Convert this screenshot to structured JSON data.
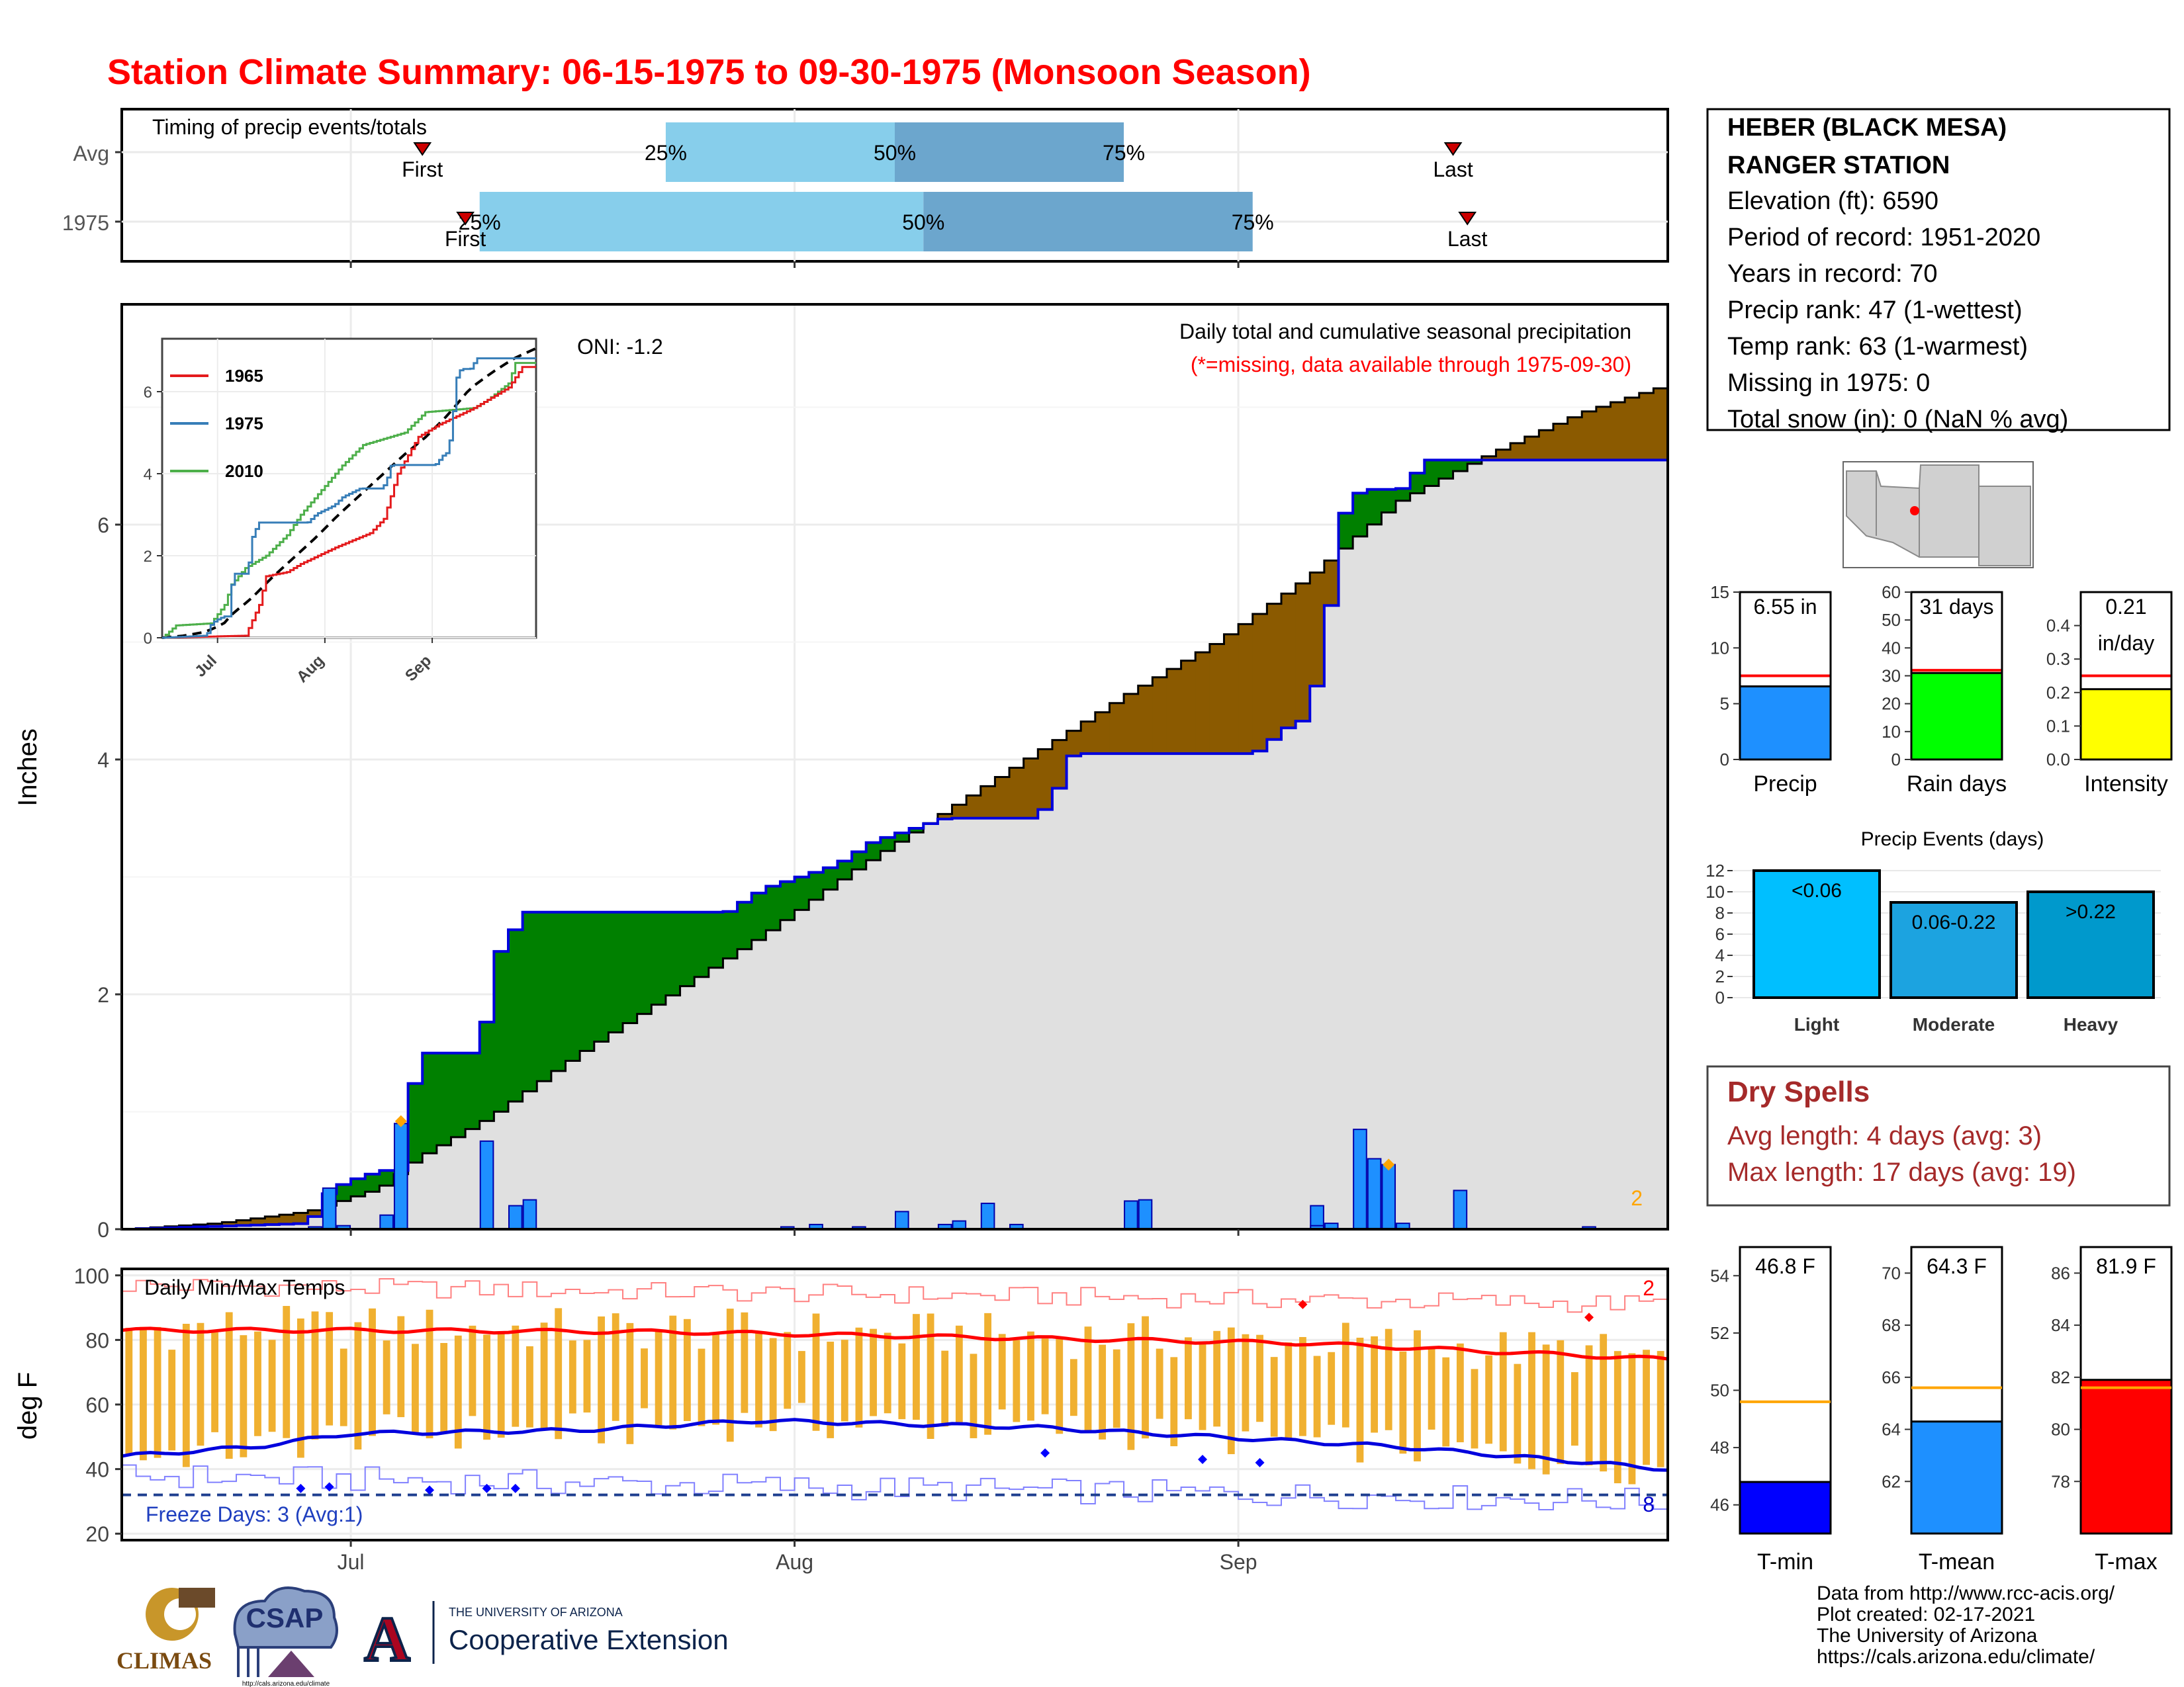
{
  "title": "Station Climate Summary: 06-15-1975 to 09-30-1975 (Monsoon Season)",
  "colors": {
    "title": "#ff0000",
    "surplus": "#008000",
    "deficit": "#8b5a00",
    "avgFill": "#e0e0e0",
    "obsLine": "#0000dd",
    "dailyBar": "#1e90ff",
    "quartileLight": "#87ceeb",
    "quartileDark": "#6ca6cd",
    "tempBar": "#f0b030",
    "tmaxAvg": "#ff0000",
    "tminAvg": "#0000dd",
    "dryspell": "#a52a2a",
    "orange": "#ffa500"
  },
  "timing": {
    "title": "Timing of precip events/totals",
    "rows": [
      {
        "label": "Avg",
        "first": "First",
        "last": "Last",
        "q25": "25%",
        "q50": "50%",
        "q75": "75%",
        "first_day": 21,
        "q25_day": 38,
        "q50_day": 54,
        "q75_day": 70,
        "last_day": 93
      },
      {
        "label": "1975",
        "first": "First",
        "last": "Last",
        "q25": "25%",
        "q50": "50%",
        "q75": "75%",
        "first_day": 24,
        "q25_day": 25,
        "q50_day": 56,
        "q75_day": 79,
        "last_day": 94
      }
    ]
  },
  "precip_panel": {
    "ylabel": "Inches",
    "oni": "ONI: -1.2",
    "legend_title": "Daily total and cumulative seasonal precipitation",
    "legend_sub": "(*=missing, data available through 1975-09-30)",
    "corner_count": "2",
    "yticks": [
      "0",
      "2",
      "4",
      "6"
    ]
  },
  "inset": {
    "series": [
      {
        "name": "1965",
        "color": "#e41a1c"
      },
      {
        "name": "1975",
        "color": "#377eb8"
      },
      {
        "name": "2010",
        "color": "#4daf4a"
      }
    ],
    "yticks": [
      "0",
      "2",
      "4",
      "6"
    ],
    "xticks": [
      "Jul",
      "Aug",
      "Sep"
    ]
  },
  "temp_panel": {
    "ylabel": "deg F",
    "title": "Daily Min/Max Temps",
    "freeze": "Freeze Days: 3 (Avg:1)",
    "count_top": "2",
    "count_bottom": "8",
    "yticks": [
      "20",
      "40",
      "60",
      "80",
      "100"
    ],
    "xticks": [
      "Jul",
      "Aug",
      "Sep"
    ]
  },
  "station": {
    "name1": "HEBER (BLACK MESA)",
    "name2": "RANGER STATION",
    "lines": [
      "Elevation (ft): 6590",
      "Period of record: 1951-2020",
      "Years in record: 70",
      "Precip rank: 47 (1-wettest)",
      "Temp rank: 63 (1-warmest)",
      "Missing in 1975: 0",
      "Total snow (in): 0 (NaN % avg)"
    ]
  },
  "mini": {
    "precip": {
      "label": "Precip",
      "value": "6.55 in",
      "val": 6.55,
      "avg": 7.5,
      "max": 15,
      "ticks": [
        "0",
        "5",
        "10",
        "15"
      ],
      "color": "#1e90ff"
    },
    "raindays": {
      "label": "Rain days",
      "value": "31 days",
      "val": 31,
      "avg": 32,
      "max": 60,
      "ticks": [
        "0",
        "10",
        "20",
        "30",
        "40",
        "50",
        "60"
      ],
      "color": "#00ff00"
    },
    "intensity": {
      "label": "Intensity",
      "value": "0.21",
      "value2": "in/day",
      "val": 0.21,
      "avg": 0.25,
      "max": 0.5,
      "ticks": [
        "0.0",
        "0.1",
        "0.2",
        "0.3",
        "0.4"
      ],
      "color": "#ffff00"
    }
  },
  "events": {
    "title": "Precip Events (days)",
    "yticks": [
      "0",
      "2",
      "4",
      "6",
      "8",
      "10",
      "12"
    ],
    "bars": [
      {
        "label": "Light",
        "tag": "<0.06",
        "value": 12,
        "color": "#00bfff"
      },
      {
        "label": "Moderate",
        "tag": "0.06-0.22",
        "value": 9,
        "color": "#1ca3e0"
      },
      {
        "label": "Heavy",
        "tag": ">0.22",
        "value": 10,
        "color": "#0099cc"
      }
    ]
  },
  "dryspells": {
    "title": "Dry Spells",
    "line1": "Avg length: 4 days (avg: 3)",
    "line2": "Max length: 17 days (avg: 19)"
  },
  "temps": {
    "tmin": {
      "label": "T-min",
      "value": "46.8 F",
      "val": 46.8,
      "avg": 49.6,
      "min": 45,
      "max": 55,
      "ticks": [
        "46",
        "48",
        "50",
        "52",
        "54"
      ],
      "color": "#0000ff"
    },
    "tmean": {
      "label": "T-mean",
      "value": "64.3 F",
      "val": 64.3,
      "avg": 65.6,
      "min": 60,
      "max": 71,
      "ticks": [
        "62",
        "64",
        "66",
        "68",
        "70"
      ],
      "color": "#1e90ff"
    },
    "tmax": {
      "label": "T-max",
      "value": "81.9 F",
      "val": 81.9,
      "avg": 81.6,
      "min": 76,
      "max": 87,
      "ticks": [
        "78",
        "80",
        "82",
        "84",
        "86"
      ],
      "color": "#ff0000"
    }
  },
  "credits": [
    "Data from http://www.rcc-acis.org/",
    "Plot created: 02-17-2021",
    "The University of Arizona",
    "https://cals.arizona.edu/climate/"
  ],
  "logos": {
    "climas": "CLIMAS",
    "csap": "CSAP",
    "csap_url": "http://cals.arizona.edu/climate",
    "ua_small": "THE UNIVERSITY OF ARIZONA",
    "ua_big": "Cooperative Extension",
    "ua_letter": "A"
  },
  "chart_data": {
    "type": "area",
    "x_start": "1975-06-15",
    "x_end": "1975-09-30",
    "xticks": [
      "Jul",
      "Aug",
      "Sep"
    ],
    "ylabel": "Inches",
    "ylim": [
      0,
      7.8
    ],
    "cumulative_1975_knots": [
      [
        0,
        0
      ],
      [
        20,
        0.05
      ],
      [
        22,
        0.3
      ],
      [
        24,
        0.4
      ],
      [
        28,
        0.5
      ],
      [
        30,
        0.5
      ],
      [
        32,
        1.5
      ],
      [
        39,
        1.5
      ],
      [
        40,
        2.25
      ],
      [
        42,
        2.5
      ],
      [
        44,
        2.7
      ],
      [
        66,
        2.7
      ],
      [
        68,
        2.8
      ],
      [
        70,
        2.9
      ],
      [
        78,
        3.1
      ],
      [
        82,
        3.3
      ],
      [
        90,
        3.5
      ],
      [
        100,
        3.5
      ],
      [
        102,
        3.7
      ],
      [
        104,
        4.05
      ],
      [
        124,
        4.05
      ],
      [
        128,
        4.3
      ],
      [
        130,
        4.35
      ],
      [
        132,
        5.2
      ],
      [
        134,
        6.2
      ],
      [
        136,
        6.3
      ],
      [
        140,
        6.3
      ],
      [
        143,
        6.55
      ],
      [
        170,
        6.55
      ]
    ],
    "average_cumulative_knots": [
      [
        0,
        0
      ],
      [
        10,
        0.05
      ],
      [
        20,
        0.15
      ],
      [
        28,
        0.35
      ],
      [
        32,
        0.6
      ],
      [
        40,
        0.95
      ],
      [
        50,
        1.5
      ],
      [
        60,
        2.0
      ],
      [
        70,
        2.5
      ],
      [
        80,
        3.05
      ],
      [
        90,
        3.55
      ],
      [
        100,
        4.05
      ],
      [
        110,
        4.55
      ],
      [
        120,
        5.0
      ],
      [
        130,
        5.55
      ],
      [
        140,
        6.2
      ],
      [
        150,
        6.6
      ],
      [
        160,
        6.95
      ],
      [
        170,
        7.2
      ]
    ],
    "daily_precip": [
      [
        20,
        0.02
      ],
      [
        22,
        0.35
      ],
      [
        24,
        0.03
      ],
      [
        28,
        0.12
      ],
      [
        30,
        0.9
      ],
      [
        40,
        0.75
      ],
      [
        42,
        0.2
      ],
      [
        44,
        0.25
      ],
      [
        72,
        0.02
      ],
      [
        76,
        0.04
      ],
      [
        80,
        0.02
      ],
      [
        85,
        0.15
      ],
      [
        89,
        0.04
      ],
      [
        92,
        0.07
      ],
      [
        95,
        0.22
      ],
      [
        97,
        0.04
      ],
      [
        110,
        0.24
      ],
      [
        112,
        0.25
      ],
      [
        130,
        0.2
      ],
      [
        131,
        0.03
      ],
      [
        133,
        0.05
      ],
      [
        135,
        0.85
      ],
      [
        137,
        0.6
      ],
      [
        139,
        0.55
      ],
      [
        140,
        0.05
      ],
      [
        146,
        0.33
      ],
      [
        160,
        0.02
      ]
    ],
    "temp_ylim": [
      18,
      102
    ],
    "tmax_avg_knots": [
      [
        0,
        83
      ],
      [
        25,
        83
      ],
      [
        60,
        82.5
      ],
      [
        90,
        81
      ],
      [
        130,
        79
      ],
      [
        170,
        74
      ]
    ],
    "tmin_avg_knots": [
      [
        0,
        44
      ],
      [
        15,
        47
      ],
      [
        25,
        51
      ],
      [
        50,
        52
      ],
      [
        70,
        55
      ],
      [
        100,
        53
      ],
      [
        140,
        47
      ],
      [
        170,
        40
      ]
    ],
    "freeze_line": 32
  }
}
